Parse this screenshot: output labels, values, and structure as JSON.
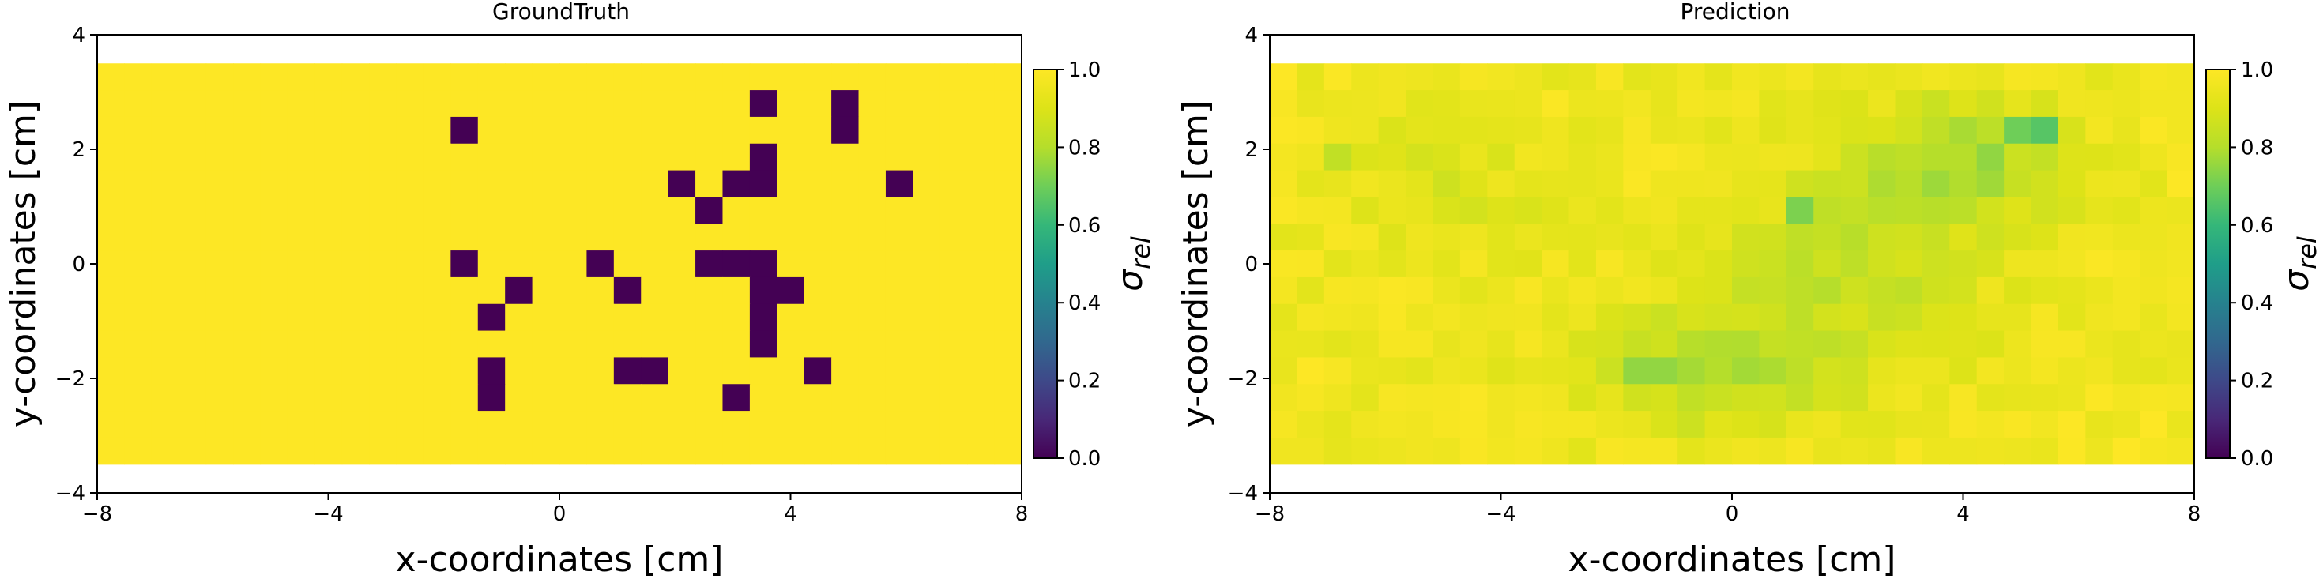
{
  "chart_data": [
    {
      "type": "heatmap",
      "title": "GroundTruth",
      "xlabel": "x-coordinates [cm]",
      "ylabel": "y-coordinates [cm]",
      "xlim": [
        -8,
        8
      ],
      "ylim": [
        -4,
        4
      ],
      "xticks": [
        -8,
        -4,
        0,
        4,
        8
      ],
      "yticks": [
        -4,
        -2,
        0,
        2,
        4
      ],
      "xtick_labels": [
        "−8",
        "−4",
        "0",
        "4",
        "8"
      ],
      "ytick_labels": [
        "−4",
        "−2",
        "0",
        "2",
        "4"
      ],
      "cell_size_cm": 0.47,
      "grid_x_range": [
        -8.0,
        8.0
      ],
      "grid_y_range": [
        -3.5,
        3.5
      ],
      "n_cols": 34,
      "n_rows": 15,
      "default_value": 1.0,
      "low_value_cells_colrow": [
        [
          24,
          1
        ],
        [
          27,
          1
        ],
        [
          13,
          2
        ],
        [
          27,
          2
        ],
        [
          24,
          3
        ],
        [
          21,
          4
        ],
        [
          23,
          4
        ],
        [
          24,
          4
        ],
        [
          29,
          4
        ],
        [
          22,
          5
        ],
        [
          13,
          7
        ],
        [
          18,
          7
        ],
        [
          22,
          7
        ],
        [
          23,
          7
        ],
        [
          24,
          7
        ],
        [
          15,
          8
        ],
        [
          19,
          8
        ],
        [
          24,
          8
        ],
        [
          25,
          8
        ],
        [
          14,
          9
        ],
        [
          24,
          9
        ],
        [
          24,
          10
        ],
        [
          14,
          11
        ],
        [
          19,
          11
        ],
        [
          20,
          11
        ],
        [
          26,
          11
        ],
        [
          14,
          12
        ],
        [
          23,
          12
        ]
      ],
      "colorbar": {
        "label": "σ",
        "label_sub": "rel",
        "range": [
          0.0,
          1.0
        ],
        "ticks": [
          "0.0",
          "0.2",
          "0.4",
          "0.6",
          "0.8",
          "1.0"
        ]
      }
    },
    {
      "type": "heatmap",
      "title": "Prediction",
      "xlabel": "x-coordinates [cm]",
      "ylabel": "y-coordinates [cm]",
      "xlim": [
        -8,
        8
      ],
      "ylim": [
        -4,
        4
      ],
      "xticks": [
        -8,
        -4,
        0,
        4,
        8
      ],
      "yticks": [
        -4,
        -2,
        0,
        2,
        4
      ],
      "xtick_labels": [
        "−8",
        "−4",
        "0",
        "4",
        "8"
      ],
      "ytick_labels": [
        "−4",
        "−2",
        "0",
        "2",
        "4"
      ],
      "cell_size_cm": 0.47,
      "grid_x_range": [
        -8.0,
        8.0
      ],
      "grid_y_range": [
        -3.5,
        3.5
      ],
      "n_cols": 34,
      "n_rows": 15,
      "value_range_shown": [
        0.65,
        1.0
      ],
      "notable_values": [
        {
          "col": 28,
          "row": 2,
          "value": 0.66
        },
        {
          "col": 27,
          "row": 2,
          "value": 0.7
        },
        {
          "col": 19,
          "row": 5,
          "value": 0.72
        },
        {
          "col": 13,
          "row": 11,
          "value": 0.75
        },
        {
          "col": 14,
          "row": 11,
          "value": 0.75
        },
        {
          "col": 2,
          "row": 3,
          "value": 0.83
        }
      ],
      "colorbar": {
        "label": "σ",
        "label_sub": "rel",
        "range": [
          0.0,
          1.0
        ],
        "ticks": [
          "0.0",
          "0.2",
          "0.4",
          "0.6",
          "0.8",
          "1.0"
        ]
      }
    }
  ]
}
